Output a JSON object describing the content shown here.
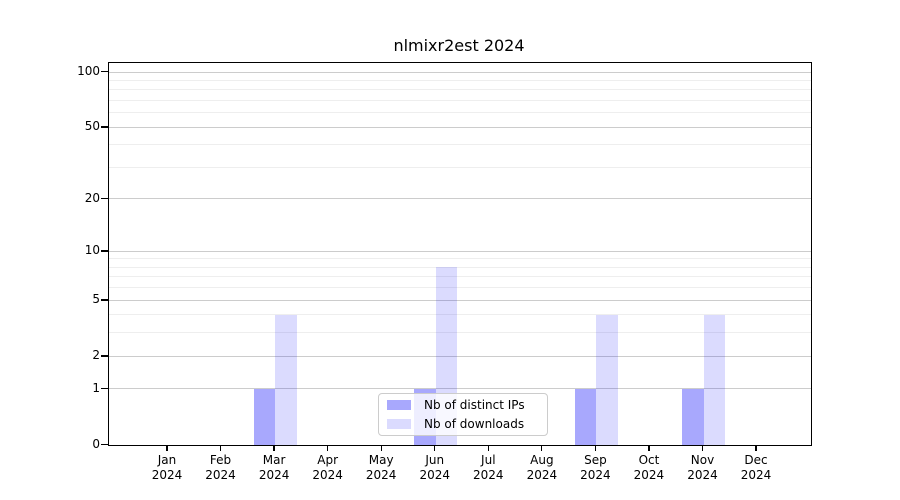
{
  "chart_data": {
    "type": "bar",
    "title": "nlmixr2est 2024",
    "year": "2024",
    "months": [
      "Jan",
      "Feb",
      "Mar",
      "Apr",
      "May",
      "Jun",
      "Jul",
      "Aug",
      "Sep",
      "Oct",
      "Nov",
      "Dec"
    ],
    "series": [
      {
        "name": "Nb of distinct IPs",
        "color": "rgba(0,0,250,0.34)",
        "values": [
          0,
          0,
          1,
          0,
          0,
          1,
          0,
          0,
          1,
          0,
          1,
          0
        ]
      },
      {
        "name": "Nb of downloads",
        "color": "rgba(0,0,250,0.14)",
        "values": [
          0,
          0,
          4,
          0,
          0,
          8,
          0,
          0,
          4,
          0,
          4,
          0
        ]
      }
    ],
    "y_axis": {
      "scale": "log1p",
      "major_ticks": [
        0,
        1,
        2,
        5,
        10,
        20,
        50,
        100
      ],
      "minor_gridlines": [
        3,
        4,
        6,
        7,
        8,
        9,
        30,
        40,
        60,
        70,
        80,
        90
      ],
      "ylim": [
        0,
        112
      ]
    },
    "legend": {
      "position": "lower-center",
      "labels": [
        "Nb of distinct IPs",
        "Nb of downloads"
      ]
    },
    "grid": true,
    "colors": {
      "major_grid": "#cccccc",
      "minor_grid": "#eeeeee",
      "axis": "#000000",
      "text": "#000000",
      "legend_border": "#cccccc",
      "background": "#ffffff"
    }
  }
}
